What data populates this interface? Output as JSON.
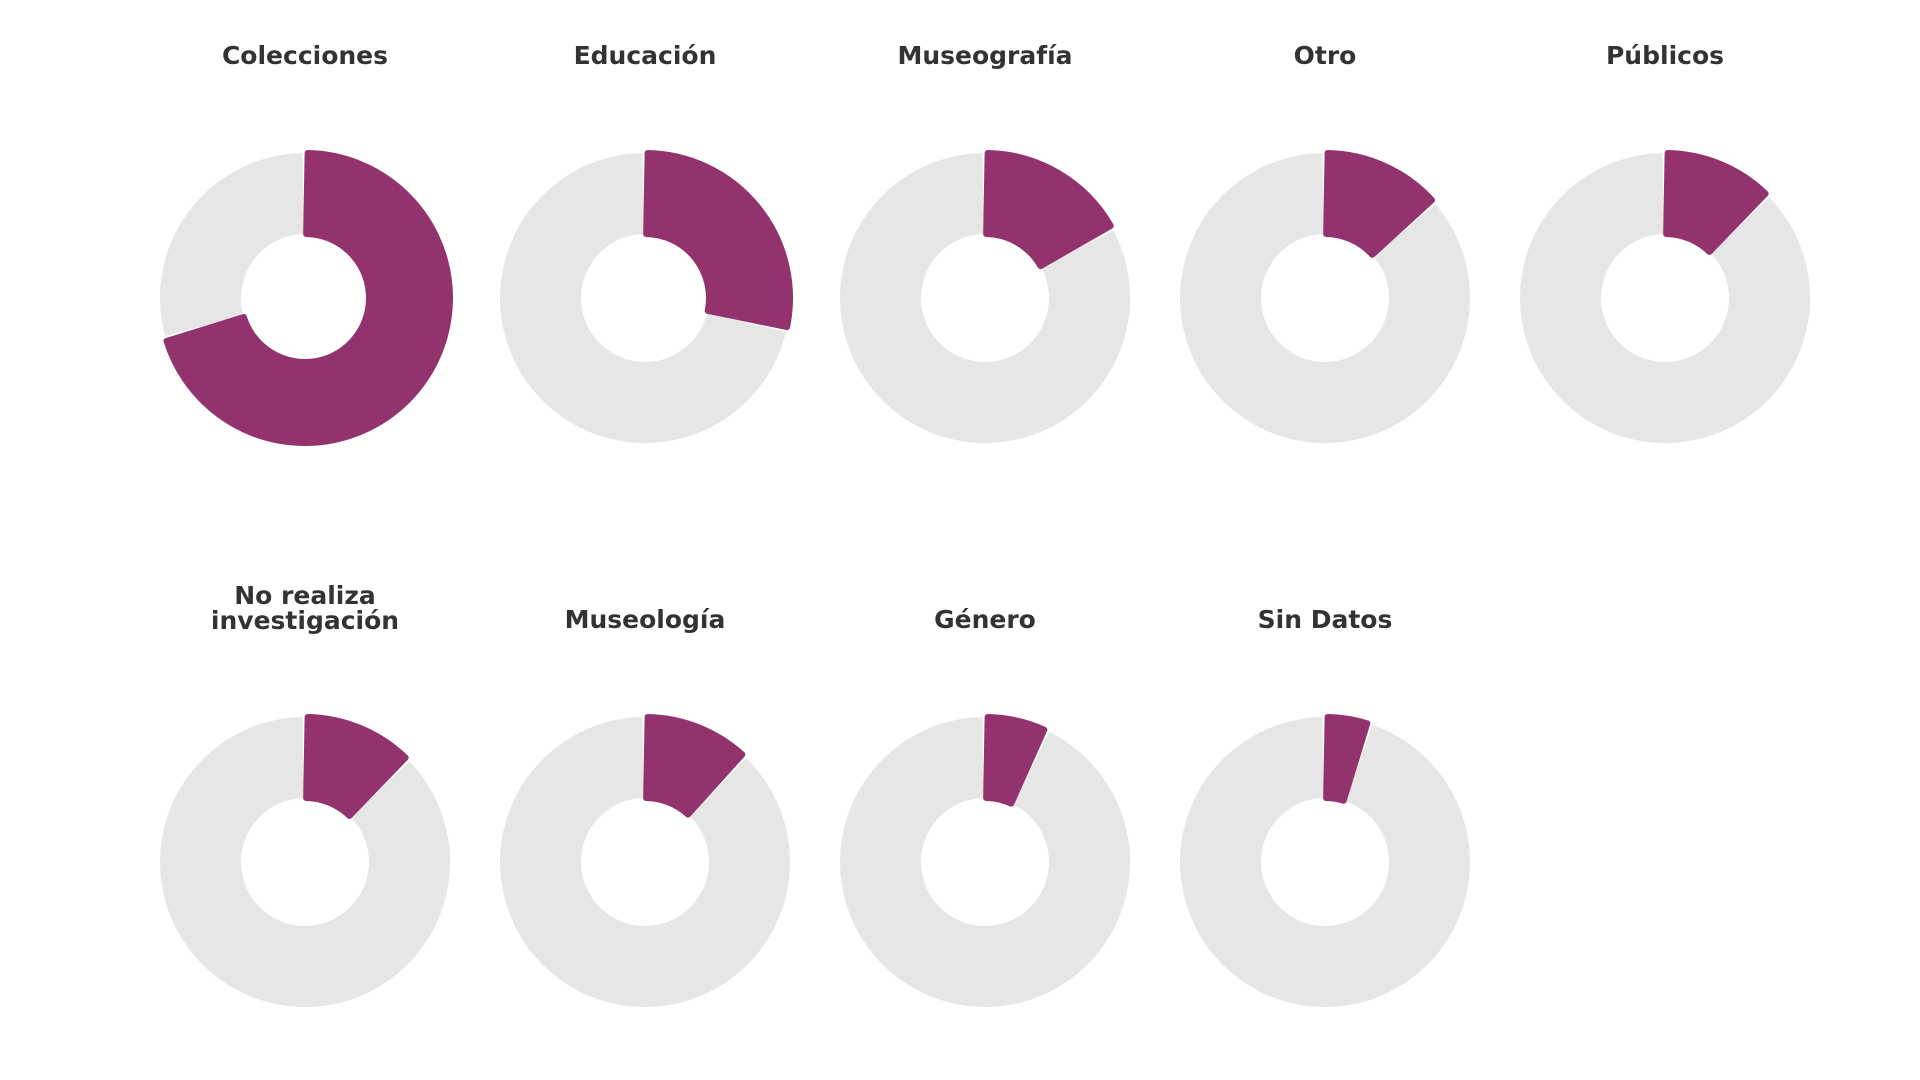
{
  "chart_data": {
    "type": "pie",
    "colors": {
      "value": "#93336d",
      "remainder": "#e6e6e6"
    },
    "charts": [
      {
        "title": "Colecciones",
        "value": 0.705
      },
      {
        "title": "Educación",
        "value": 0.285
      },
      {
        "title": "Museografía",
        "value": 0.17
      },
      {
        "title": "Otro",
        "value": 0.135
      },
      {
        "title": "Públicos",
        "value": 0.125
      },
      {
        "title": "No realiza investigación",
        "value": 0.125
      },
      {
        "title": "Museología",
        "value": 0.12
      },
      {
        "title": "Género",
        "value": 0.07
      },
      {
        "title": "Sin Datos",
        "value": 0.05
      }
    ]
  }
}
